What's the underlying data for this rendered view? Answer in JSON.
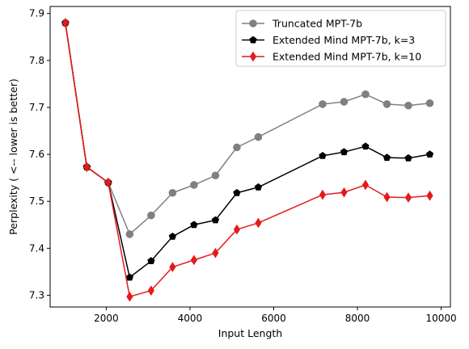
{
  "chart_data": {
    "type": "line",
    "title": "",
    "xlabel": "Input Length",
    "ylabel": "Perplexity ( <-- lower is better)",
    "xlim": [
      660,
      10220
    ],
    "ylim": [
      7.275,
      7.915
    ],
    "xticks": [
      2000,
      4000,
      6000,
      8000,
      10000
    ],
    "xtick_labels": [
      "2000",
      "4000",
      "6000",
      "8000",
      "10000"
    ],
    "yticks": [
      7.3,
      7.4,
      7.5,
      7.6,
      7.7,
      7.8,
      7.9
    ],
    "ytick_labels": [
      "7.3",
      "7.4",
      "7.5",
      "7.6",
      "7.7",
      "7.8",
      "7.9"
    ],
    "grid": false,
    "legend": "top-right",
    "series": [
      {
        "name": "Truncated MPT-7b",
        "color": "#808080",
        "marker": "circle",
        "x": [
          1024,
          1536,
          2048,
          2560,
          3072,
          3584,
          4096,
          4608,
          5120,
          5632,
          7168,
          7680,
          8192,
          8704,
          9216,
          9728
        ],
        "y": [
          7.88,
          7.573,
          7.54,
          7.43,
          7.47,
          7.518,
          7.535,
          7.555,
          7.615,
          7.637,
          7.707,
          7.712,
          7.728,
          7.707,
          7.704,
          7.709
        ]
      },
      {
        "name": "Extended Mind MPT-7b, k=3",
        "color": "#000000",
        "marker": "pentagon",
        "x": [
          1024,
          1536,
          2048,
          2560,
          3072,
          3584,
          4096,
          4608,
          5120,
          5632,
          7168,
          7680,
          8192,
          8704,
          9216,
          9728
        ],
        "y": [
          7.88,
          7.573,
          7.54,
          7.338,
          7.373,
          7.425,
          7.45,
          7.46,
          7.518,
          7.53,
          7.597,
          7.605,
          7.617,
          7.593,
          7.592,
          7.6
        ]
      },
      {
        "name": "Extended Mind MPT-7b, k=10",
        "color": "#e41a1c",
        "marker": "diamond",
        "x": [
          1024,
          1536,
          2048,
          2560,
          3072,
          3584,
          4096,
          4608,
          5120,
          5632,
          7168,
          7680,
          8192,
          8704,
          9216,
          9728
        ],
        "y": [
          7.88,
          7.573,
          7.54,
          7.297,
          7.31,
          7.36,
          7.375,
          7.39,
          7.44,
          7.454,
          7.514,
          7.519,
          7.535,
          7.509,
          7.508,
          7.512
        ]
      }
    ]
  }
}
